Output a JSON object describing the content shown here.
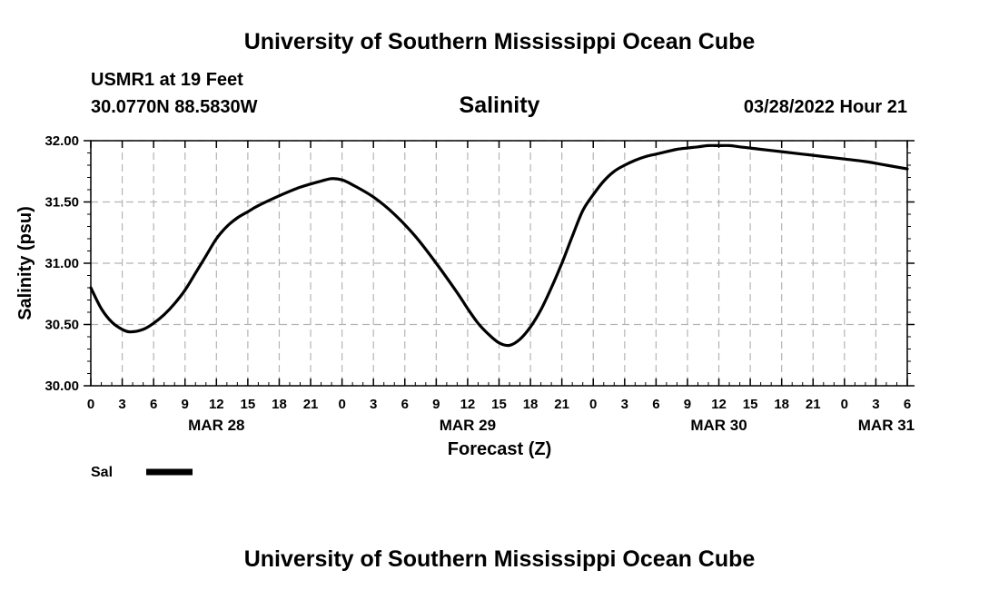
{
  "header": {
    "title": "University of Southern Mississippi Ocean Cube",
    "station": "USMR1 at 19 Feet",
    "coords": "30.0770N  88.5830W",
    "parameter": "Salinity",
    "timestamp": "03/28/2022 Hour 21"
  },
  "footer": {
    "title": "University of Southern Mississippi Ocean Cube"
  },
  "chart_data": {
    "type": "line",
    "title": "Salinity",
    "xlabel": "Forecast (Z)",
    "ylabel": "Salinity (psu)",
    "ylim": [
      30.0,
      32.0
    ],
    "xlim": [
      0,
      78
    ],
    "grid": true,
    "y_ticks": [
      "30.00",
      "30.50",
      "31.00",
      "31.50",
      "32.00"
    ],
    "y_tick_values": [
      30.0,
      30.5,
      31.0,
      31.5,
      32.0
    ],
    "x_tick_labels": [
      "0",
      "3",
      "6",
      "9",
      "12",
      "15",
      "18",
      "21",
      "0",
      "3",
      "6",
      "9",
      "12",
      "15",
      "18",
      "21",
      "0",
      "3",
      "6",
      "9",
      "12",
      "15",
      "18",
      "21",
      "0",
      "3",
      "6"
    ],
    "date_labels": [
      {
        "label": "MAR 28",
        "hour": 12
      },
      {
        "label": "MAR 29",
        "hour": 36
      },
      {
        "label": "MAR 30",
        "hour": 60
      },
      {
        "label": "MAR 31",
        "hour": 76
      }
    ],
    "series": [
      {
        "name": "Sal",
        "x": [
          0,
          1,
          2,
          3,
          3.8,
          5,
          6,
          7,
          8,
          9,
          10,
          11,
          12,
          13,
          14,
          15,
          16,
          18,
          20,
          22,
          23,
          24,
          25,
          27,
          29,
          31,
          33,
          35,
          36,
          37,
          38,
          39,
          40,
          41,
          42,
          43,
          44,
          45,
          46,
          47,
          48,
          49,
          50,
          51,
          52,
          53,
          54,
          55,
          56,
          57,
          58,
          59,
          60,
          61,
          62,
          63,
          64,
          66,
          68,
          70,
          72,
          74,
          76,
          78
        ],
        "values": [
          30.8,
          30.63,
          30.52,
          30.46,
          30.44,
          30.46,
          30.51,
          30.58,
          30.67,
          30.78,
          30.92,
          31.06,
          31.2,
          31.3,
          31.37,
          31.42,
          31.47,
          31.55,
          31.62,
          31.67,
          31.69,
          31.68,
          31.64,
          31.54,
          31.4,
          31.22,
          31.0,
          30.76,
          30.63,
          30.51,
          30.42,
          30.35,
          30.33,
          30.38,
          30.48,
          30.62,
          30.8,
          31.0,
          31.22,
          31.43,
          31.56,
          31.67,
          31.75,
          31.8,
          31.84,
          31.87,
          31.89,
          31.91,
          31.93,
          31.94,
          31.95,
          31.96,
          31.96,
          31.96,
          31.95,
          31.94,
          31.93,
          31.91,
          31.89,
          31.87,
          31.85,
          31.83,
          31.8,
          31.77
        ]
      }
    ],
    "legend": [
      {
        "label": "Sal",
        "position": "bottom-left"
      }
    ]
  }
}
